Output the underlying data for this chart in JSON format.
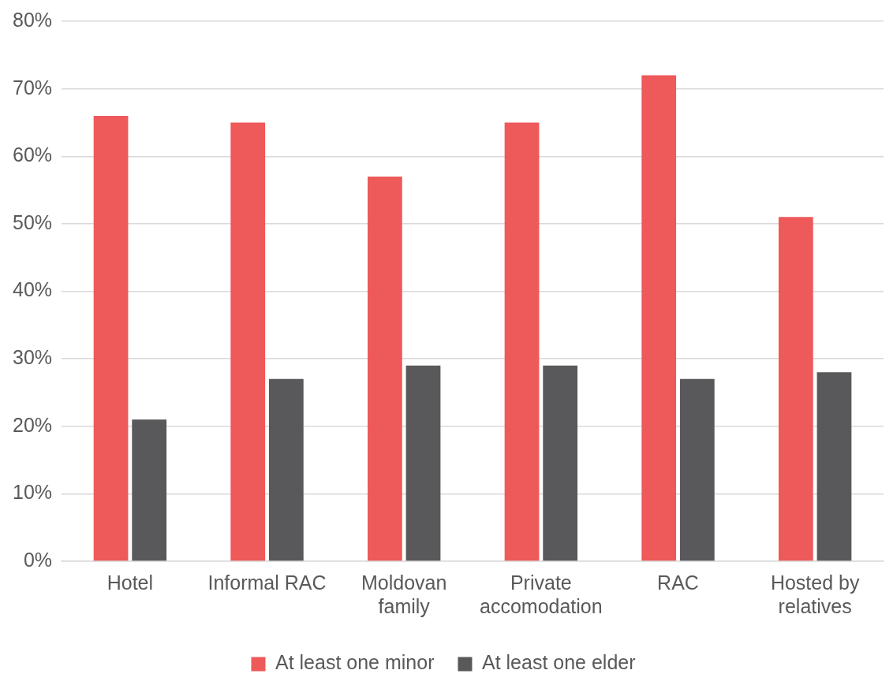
{
  "chart_data": {
    "type": "bar",
    "categories": [
      "Hotel",
      "Informal RAC",
      "Moldovan family",
      "Private accomodation",
      "RAC",
      "Hosted by relatives"
    ],
    "series": [
      {
        "name": "At least one minor",
        "color": "#ee5959",
        "values": [
          66,
          65,
          57,
          65,
          72,
          51
        ]
      },
      {
        "name": "At least one elder",
        "color": "#59595b",
        "values": [
          21,
          27,
          29,
          29,
          27,
          28
        ]
      }
    ],
    "ylim": [
      0,
      80
    ],
    "yticks": [
      {
        "value": 0,
        "label": "0%"
      },
      {
        "value": 10,
        "label": "10%"
      },
      {
        "value": 20,
        "label": "20%"
      },
      {
        "value": 30,
        "label": "30%"
      },
      {
        "value": 40,
        "label": "40%"
      },
      {
        "value": 50,
        "label": "50%"
      },
      {
        "value": 60,
        "label": "60%"
      },
      {
        "value": 70,
        "label": "70%"
      },
      {
        "value": 80,
        "label": "80%"
      }
    ],
    "grid": "y",
    "legend": "bottom"
  }
}
